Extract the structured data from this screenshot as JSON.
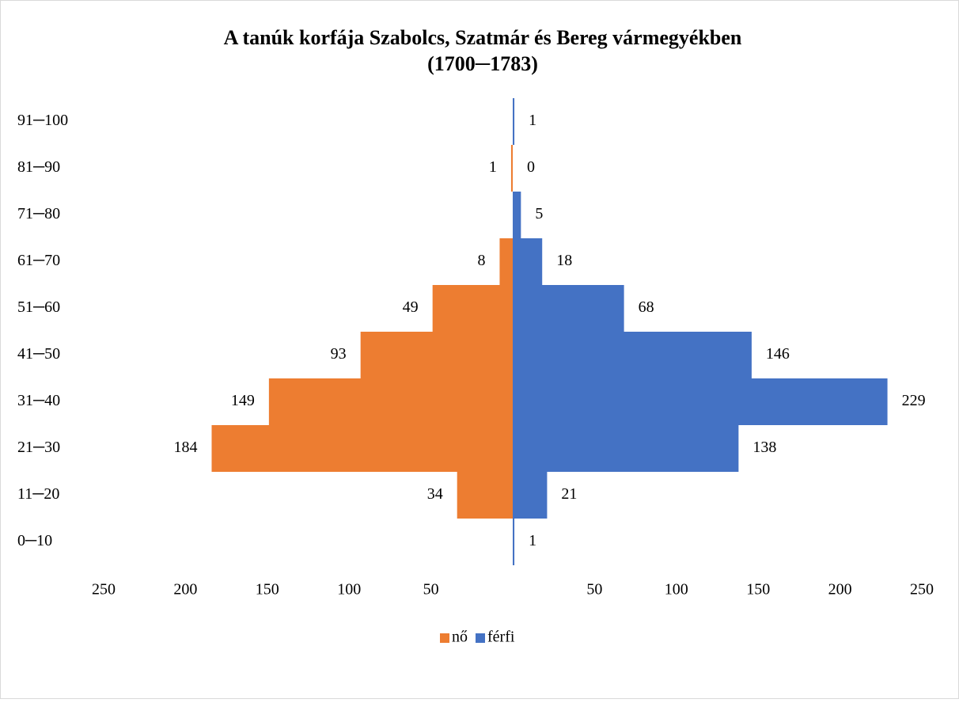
{
  "chart_data": {
    "type": "pyramid",
    "title": "A tanúk korfája Szabolcs, Szatmár és Bereg vármegyékben",
    "subtitle": "(1700─1783)",
    "categories": [
      "0─10",
      "11─20",
      "21─30",
      "31─40",
      "41─50",
      "51─60",
      "61─70",
      "71─80",
      "81─90",
      "91─100"
    ],
    "series": [
      {
        "name": "nő",
        "color": "#ed7d31",
        "values": [
          null,
          34,
          184,
          149,
          93,
          49,
          8,
          null,
          1,
          null
        ]
      },
      {
        "name": "férfi",
        "color": "#4472c4",
        "values": [
          1,
          21,
          138,
          229,
          146,
          68,
          18,
          5,
          0,
          1
        ]
      }
    ],
    "xlim": [
      -250,
      250
    ],
    "xticks": [
      {
        "value": -250,
        "label": "250"
      },
      {
        "value": -200,
        "label": "200"
      },
      {
        "value": -150,
        "label": "150"
      },
      {
        "value": -100,
        "label": "100"
      },
      {
        "value": -50,
        "label": "50"
      },
      50,
      100,
      150,
      200,
      250
    ],
    "legend": "bottom"
  }
}
